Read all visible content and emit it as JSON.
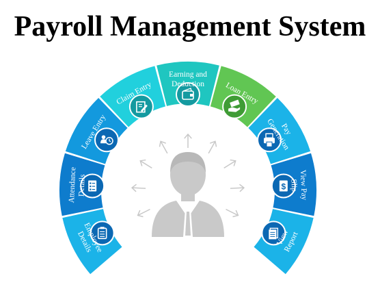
{
  "title": "Payroll Management System",
  "colors": {
    "dark_blue": "#0e7ccd",
    "mid_blue": "#1399de",
    "sky_blue": "#1bb3e8",
    "teal": "#1fc6c0",
    "cyan": "#21d0dd",
    "green": "#61c653",
    "icon_ring_blue": "#0b68b3",
    "icon_ring_teal": "#149aa0",
    "icon_ring_green": "#3f9c35",
    "person": "#c9c9c9",
    "arrow": "#c8c8c8"
  },
  "segments": [
    {
      "label": "Employee\nDetails",
      "color": "sky_blue",
      "icon": "clipboard-icon"
    },
    {
      "label": "Attendance\nDetails",
      "color": "dark_blue",
      "icon": "checklist-icon"
    },
    {
      "label": "Leave Entry",
      "color": "mid_blue",
      "icon": "user-clock-icon"
    },
    {
      "label": "Claim Entry",
      "color": "cyan",
      "icon": "edit-document-icon"
    },
    {
      "label": "Earning and\nDeduction",
      "color": "teal",
      "icon": "wallet-icon"
    },
    {
      "label": "Loan Entry",
      "color": "green",
      "icon": "money-hand-icon"
    },
    {
      "label": "Pay\nGeneration",
      "color": "sky_blue",
      "icon": "payslip-printer-icon"
    },
    {
      "label": "View Pay\nSlip",
      "color": "dark_blue",
      "icon": "dollar-document-icon"
    },
    {
      "label": "View\nReport",
      "color": "sky_blue",
      "icon": "report-icon"
    }
  ],
  "center_icon": "employee-avatar-icon"
}
